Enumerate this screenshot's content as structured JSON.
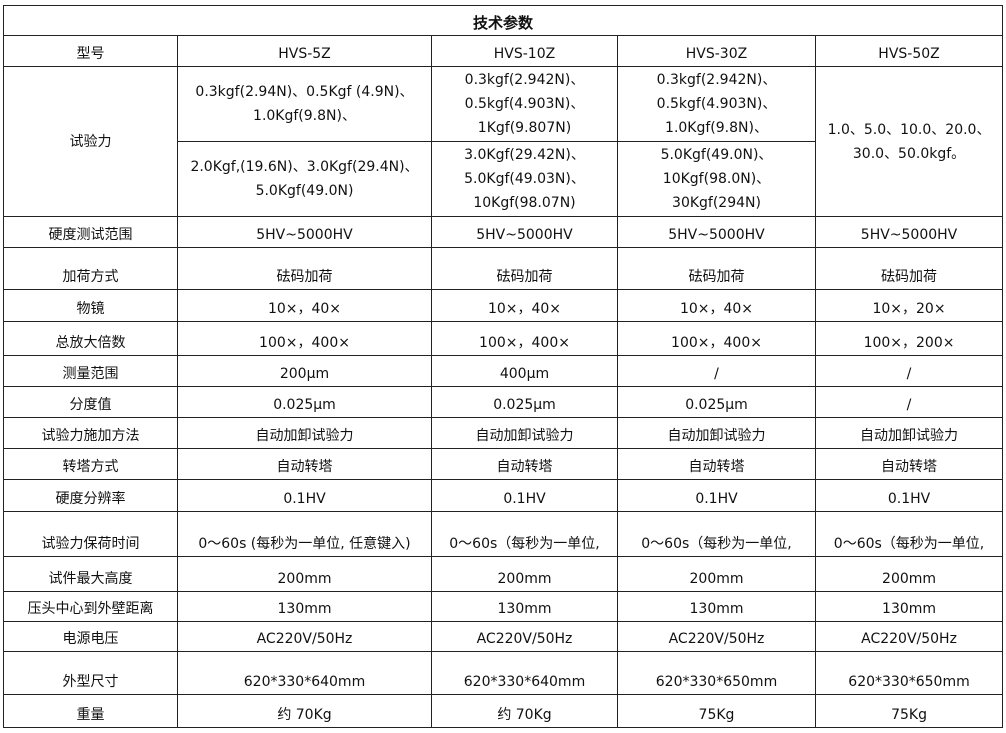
{
  "title": "技术参数",
  "header": {
    "label": "型号",
    "models": [
      "HVS-5Z",
      "HVS-10Z",
      "HVS-30Z",
      "HVS-50Z"
    ]
  },
  "test_force": {
    "label": "试验力",
    "upper": [
      [
        "0.3kgf(2.94N)、0.5Kgf (4.9N)、",
        "1.0Kgf(9.8N)、"
      ],
      [
        "0.3kgf(2.942N)、",
        "0.5kgf(4.903N)、",
        "1Kgf(9.807N)"
      ],
      [
        "0.3kgf(2.942N)、",
        "0.5kgf(4.903N)、",
        "1.0Kgf(9.8N)、"
      ]
    ],
    "lower": [
      [
        "2.0Kgf,(19.6N)、3.0Kgf(29.4N)、",
        "5.0Kgf(49.0N)"
      ],
      [
        "3.0Kgf(29.42N)、",
        "5.0Kgf(49.03N)、",
        "10Kgf(98.07N)"
      ],
      [
        "5.0Kgf(49.0N)、",
        "10Kgf(98.0N)、",
        "30Kgf(294N)"
      ]
    ],
    "hvs50": [
      "1.0、5.0、10.0、20.0、",
      "30.0、50.0kgf。"
    ]
  },
  "rows": [
    {
      "label": "硬度测试范围",
      "values": [
        "5HV~5000HV",
        "5HV~5000HV",
        "5HV~5000HV",
        "5HV~5000HV"
      ]
    },
    {
      "label": "加荷方式",
      "values": [
        "砝码加荷",
        "砝码加荷",
        "砝码加荷",
        "砝码加荷"
      ]
    },
    {
      "label": "物镜",
      "values": [
        "10×，40×",
        "10×，40×",
        "10×，40×",
        "10×，20×"
      ]
    },
    {
      "label": "总放大倍数",
      "values": [
        "100×，400×",
        "100×，400×",
        "100×，400×",
        "100×，200×"
      ]
    },
    {
      "label": "测量范围",
      "values": [
        "200μm",
        "400μm",
        "/",
        "/"
      ]
    },
    {
      "label": "分度值",
      "values": [
        "0.025μm",
        "0.025μm",
        "0.025μm",
        "/"
      ]
    },
    {
      "label": "试验力施加方法",
      "values": [
        "自动加卸试验力",
        "自动加卸试验力",
        "自动加卸试验力",
        "自动加卸试验力"
      ]
    },
    {
      "label": "转塔方式",
      "values": [
        "自动转塔",
        "自动转塔",
        "自动转塔",
        "自动转塔"
      ]
    },
    {
      "label": "硬度分辨率",
      "values": [
        "0.1HV",
        "0.1HV",
        "0.1HV",
        "0.1HV"
      ]
    },
    {
      "label": "试验力保荷时间",
      "values": [
        "0～60s (每秒为一单位, 任意键入)",
        "0～60s（每秒为一单位,",
        "0～60s（每秒为一单位,",
        "0～60s（每秒为一单位,"
      ]
    },
    {
      "label": "试件最大高度",
      "values": [
        "200mm",
        "200mm",
        "200mm",
        "200mm"
      ]
    },
    {
      "label": "压头中心到外壁距离",
      "values": [
        "130mm",
        "130mm",
        "130mm",
        "130mm"
      ]
    },
    {
      "label": "电源电压",
      "values": [
        "AC220V/50Hz",
        "AC220V/50Hz",
        "AC220V/50Hz",
        "AC220V/50Hz"
      ]
    },
    {
      "label": "外型尺寸",
      "values": [
        "620*330*640mm",
        "620*330*640mm",
        "620*330*650mm",
        "620*330*650mm"
      ]
    },
    {
      "label": "重量",
      "values": [
        "约 70Kg",
        "约 70Kg",
        "75Kg",
        "75Kg"
      ]
    }
  ]
}
